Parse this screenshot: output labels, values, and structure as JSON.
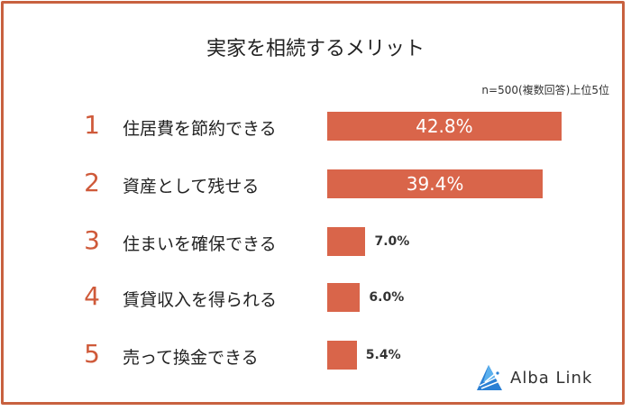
{
  "chart_data": {
    "type": "bar",
    "orientation": "horizontal",
    "title": "実家を相続するメリット",
    "note": "n=500(複数回答)上位5位",
    "ranks": [
      "1",
      "2",
      "3",
      "4",
      "5"
    ],
    "categories": [
      "住居費を節約できる",
      "資産として残せる",
      "住まいを確保できる",
      "賃貸収入を得られる",
      "売って換金できる"
    ],
    "values": [
      42.8,
      39.4,
      7.0,
      6.0,
      5.4
    ],
    "value_labels": [
      "42.8%",
      "39.4%",
      "7.0%",
      "6.0%",
      "5.4%"
    ],
    "colors": {
      "bar": "#d9654a",
      "rank": "#cf5a3a",
      "frame": "#c8613f"
    }
  },
  "logo": {
    "text": "Alba Link"
  }
}
